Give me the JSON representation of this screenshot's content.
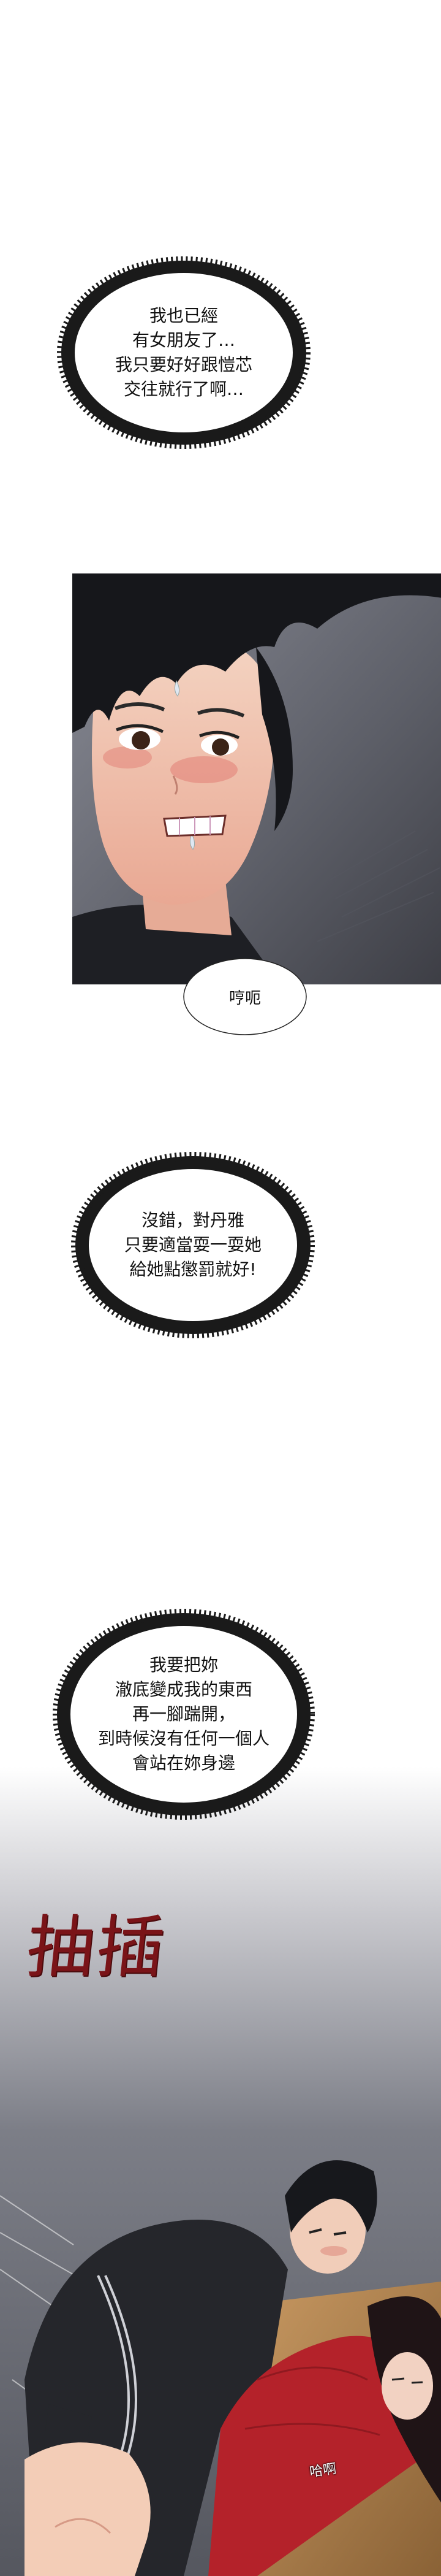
{
  "thought_1": {
    "lines": "我也已經\n有女朋友了…\n我只要好好跟愷芯\n交往就行了啊…"
  },
  "speech_1": {
    "text": "哼呃"
  },
  "thought_2": {
    "lines": "沒錯，對丹雅\n只要適當耍一耍她\n給她點懲罰就好!"
  },
  "thought_3": {
    "lines": "我要把妳\n澈底變成我的東西\n再一腳踹開，\n到時候沒有任何一個人\n會站在妳身邊"
  },
  "sfx": {
    "text": "抽插"
  },
  "moan": {
    "text": "哈啊"
  },
  "colors": {
    "sfx": "#7a1418",
    "panel_bg": "#6a6d77",
    "shirt": "#2a2b30",
    "dress": "#b4222a"
  }
}
